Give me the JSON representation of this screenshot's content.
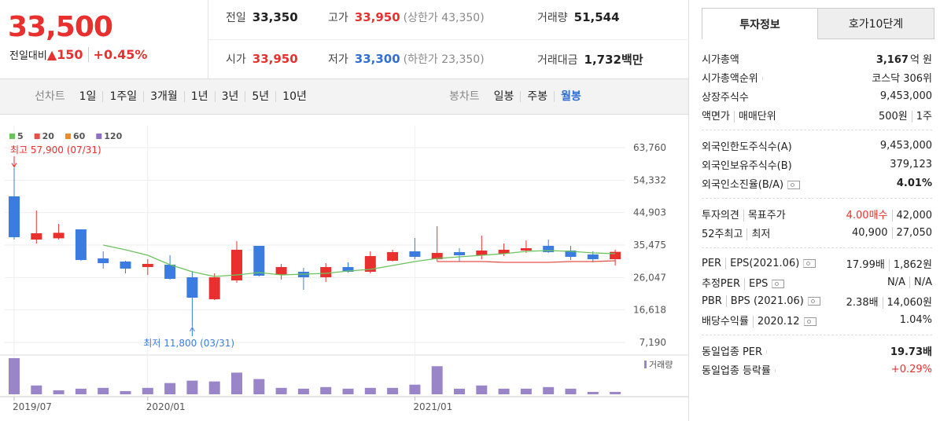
{
  "header": {
    "price": "33,500",
    "change_label": "전일대비",
    "change": "▲150",
    "change_rate": "+0.45%",
    "prev_label": "전일",
    "prev": "33,350",
    "high_label": "고가",
    "high": "33,950",
    "upper_limit": "(상한가 43,350)",
    "volume_label": "거래량",
    "volume": "51,544",
    "open_label": "시가",
    "open": "33,950",
    "low_label": "저가",
    "low": "33,300",
    "lower_limit": "(하한가 23,350)",
    "amount_label": "거래대금",
    "amount": "1,732",
    "amount_unit": "백만"
  },
  "toolbar": {
    "line_label": "선차트",
    "line_periods": [
      "1일",
      "1주일",
      "3개월",
      "1년",
      "3년",
      "5년",
      "10년"
    ],
    "candle_label": "봉차트",
    "candle_periods": [
      "일봉",
      "주봉",
      "월봉"
    ],
    "selected_candle": 2
  },
  "chart_data": {
    "type": "candlestick",
    "categories": [
      "2019/07",
      null,
      null,
      null,
      null,
      null,
      "2020/01",
      null,
      null,
      null,
      null,
      null,
      null,
      null,
      null,
      null,
      null,
      null,
      "2021/01",
      null,
      null,
      null,
      null,
      null,
      null,
      null,
      null,
      null
    ],
    "open": [
      49620,
      37070,
      37440,
      40040,
      31600,
      30690,
      29090,
      29770,
      26120,
      19740,
      25210,
      35250,
      26810,
      27720,
      26120,
      29090,
      27720,
      30920,
      33650,
      31370,
      33420,
      32510,
      32970,
      33880,
      35250,
      33880,
      32740,
      31370
    ],
    "high": [
      57900,
      45510,
      41640,
      40040,
      33650,
      30920,
      31370,
      32510,
      27950,
      27260,
      36620,
      35250,
      30000,
      28860,
      30230,
      30460,
      33650,
      34110,
      37530,
      40950,
      34560,
      38210,
      35930,
      36850,
      37070,
      35250,
      33650,
      34110
    ],
    "low": [
      37070,
      35930,
      37070,
      30920,
      28640,
      27260,
      26810,
      25440,
      11800,
      19510,
      24530,
      26350,
      25440,
      22470,
      24760,
      27490,
      27260,
      30690,
      31370,
      30690,
      30690,
      31370,
      32280,
      33190,
      33190,
      31140,
      30460,
      29540
    ],
    "close": [
      37760,
      38900,
      39040,
      31140,
      30230,
      28640,
      30000,
      25670,
      20190,
      26120,
      34110,
      26580,
      29090,
      26120,
      29090,
      27720,
      32280,
      33420,
      32050,
      33190,
      32510,
      33880,
      34110,
      34560,
      33420,
      32050,
      31370,
      33500
    ],
    "up_color": "#e8312f",
    "down_color": "#3a7ce0",
    "series": [
      {
        "name": "5",
        "color": "#6cc35e",
        "values": [
          null,
          null,
          null,
          null,
          35480,
          34110,
          32510,
          29770,
          27720,
          26350,
          26810,
          27490,
          26810,
          27040,
          27260,
          27950,
          28400,
          29540,
          30690,
          31600,
          32050,
          32510,
          32970,
          33650,
          33880,
          33650,
          33190,
          32970
        ]
      },
      {
        "name": "20",
        "color": "#e8514a",
        "values": [
          null,
          null,
          null,
          null,
          null,
          null,
          null,
          null,
          null,
          null,
          null,
          null,
          null,
          null,
          null,
          null,
          null,
          null,
          null,
          30690,
          30690,
          30690,
          30460,
          30460,
          30460,
          30690,
          30690,
          30920
        ]
      },
      {
        "name": "60",
        "color": "#f08a24",
        "values": [
          null,
          null,
          null,
          null,
          null,
          null,
          null,
          null,
          null,
          null,
          null,
          null,
          null,
          null,
          null,
          null,
          null,
          null,
          null,
          null,
          null,
          null,
          null,
          null,
          null,
          null,
          null,
          null
        ]
      },
      {
        "name": "120",
        "color": "#8e6fc1",
        "values": [
          null,
          null,
          null,
          null,
          null,
          null,
          null,
          null,
          null,
          null,
          null,
          null,
          null,
          null,
          null,
          null,
          null,
          null,
          null,
          null,
          null,
          null,
          null,
          null,
          null,
          null,
          null,
          null
        ]
      }
    ],
    "ylim": [
      7190,
      63760
    ],
    "yticks": [
      {
        "value": 7190,
        "label": "7,190"
      },
      {
        "value": 16618,
        "label": "16,618"
      },
      {
        "value": 26047,
        "label": "26,047"
      },
      {
        "value": 35475,
        "label": "35,475"
      },
      {
        "value": 44903,
        "label": "44,903"
      },
      {
        "value": 54332,
        "label": "54,332"
      },
      {
        "value": 63760,
        "label": "63,760"
      }
    ],
    "max_label": "최고 57,900 (07/31)",
    "min_label": "최저 11,800 (03/31)",
    "volume_label": "거래량",
    "volume_color": "#9b85c9",
    "volume": [
      45,
      11,
      5,
      7,
      8,
      4,
      8,
      14,
      17,
      16,
      27,
      19,
      8,
      7,
      9,
      7,
      8,
      8,
      12,
      35,
      7,
      11,
      7,
      7,
      9,
      7,
      3,
      3
    ],
    "grid": true
  },
  "panel": {
    "tabs": [
      "투자정보",
      "호가10단계"
    ],
    "active_tab": 0,
    "sections": [
      [
        {
          "labels": [
            "시가총액"
          ],
          "values": [
            "3,167"
          ],
          "unit": "억 원",
          "bold": true
        },
        {
          "labels": [
            "시가총액순위"
          ],
          "arrow": true,
          "values": [
            "코스닥 306위"
          ]
        },
        {
          "labels": [
            "상장주식수"
          ],
          "values": [
            "9,453,000"
          ]
        },
        {
          "labels": [
            "액면가",
            "매매단위"
          ],
          "values": [
            "500원",
            "1주"
          ]
        }
      ],
      [
        {
          "labels": [
            "외국인한도주식수(A)"
          ],
          "values": [
            "9,453,000"
          ]
        },
        {
          "labels": [
            "외국인보유주식수(B)"
          ],
          "values": [
            "379,123"
          ]
        },
        {
          "labels": [
            "외국인소진율(B/A)"
          ],
          "help": true,
          "values": [
            "4.01%"
          ],
          "bold": true
        }
      ],
      [
        {
          "labels": [
            "투자의견",
            "목표주가"
          ],
          "values": [
            "4.00매수",
            "42,000"
          ],
          "highlight": "#e8312f"
        },
        {
          "labels": [
            "52주최고",
            "최저"
          ],
          "values": [
            "40,900",
            "27,050"
          ]
        }
      ],
      [
        {
          "labels": [
            "PER",
            "EPS(2021.06)"
          ],
          "help": true,
          "values": [
            "17.99배",
            "1,862원"
          ]
        },
        {
          "labels": [
            "추정PER",
            "EPS"
          ],
          "help": true,
          "values": [
            "N/A",
            "N/A"
          ]
        },
        {
          "labels": [
            "PBR",
            "BPS (2021.06)"
          ],
          "help": true,
          "values": [
            "2.38배",
            "14,060원"
          ]
        },
        {
          "labels": [
            "배당수익률",
            "2020.12"
          ],
          "help": true,
          "values": [
            "1.04%"
          ]
        }
      ],
      [
        {
          "labels": [
            "동일업종 PER"
          ],
          "arrow": true,
          "values": [
            "19.73배"
          ],
          "bold": true
        },
        {
          "labels": [
            "동일업종 등락률"
          ],
          "arrow": true,
          "values": [
            "+0.29%"
          ],
          "highlight": "#e8312f"
        }
      ]
    ]
  }
}
